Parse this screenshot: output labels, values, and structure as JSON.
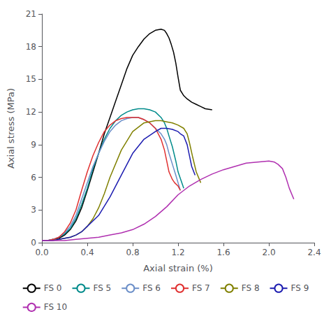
{
  "chart_data": {
    "type": "line",
    "xlabel": "Axial strain (%)",
    "ylabel": "Axial stress (MPa)",
    "xlim": [
      0.0,
      2.4
    ],
    "ylim": [
      0,
      21
    ],
    "xticks": [
      {
        "value": 0.0,
        "label": "0.0"
      },
      0.4,
      0.8,
      1.2,
      1.6,
      {
        "value": 2.0,
        "label": "2.0"
      },
      2.4
    ],
    "yticks": [
      0,
      3,
      6,
      9,
      12,
      15,
      18,
      21
    ],
    "grid": false,
    "legend": "bottom",
    "series": [
      {
        "name": "FS 0",
        "color": "#000000",
        "x": [
          0.0,
          0.05,
          0.1,
          0.15,
          0.2,
          0.25,
          0.3,
          0.35,
          0.4,
          0.45,
          0.5,
          0.55,
          0.6,
          0.65,
          0.7,
          0.75,
          0.8,
          0.85,
          0.9,
          0.95,
          1.0,
          1.05,
          1.08,
          1.1,
          1.12,
          1.14,
          1.16,
          1.18,
          1.2,
          1.22,
          1.25,
          1.28,
          1.32,
          1.36,
          1.4,
          1.44,
          1.5
        ],
        "values": [
          0.2,
          0.2,
          0.3,
          0.4,
          0.7,
          1.2,
          2.0,
          3.2,
          4.8,
          6.5,
          8.2,
          10.0,
          11.5,
          13.0,
          14.5,
          16.0,
          17.2,
          18.0,
          18.7,
          19.2,
          19.5,
          19.6,
          19.5,
          19.2,
          18.8,
          18.2,
          17.5,
          16.5,
          15.2,
          14.0,
          13.5,
          13.2,
          12.9,
          12.7,
          12.5,
          12.3,
          12.2
        ]
      },
      {
        "name": "FS 5",
        "color": "#008B8B",
        "x": [
          0.0,
          0.05,
          0.1,
          0.15,
          0.2,
          0.25,
          0.3,
          0.35,
          0.4,
          0.45,
          0.5,
          0.55,
          0.6,
          0.65,
          0.7,
          0.75,
          0.8,
          0.85,
          0.9,
          0.95,
          1.0,
          1.05,
          1.08,
          1.1,
          1.12,
          1.15,
          1.18,
          1.2,
          1.25
        ],
        "values": [
          0.2,
          0.2,
          0.3,
          0.5,
          0.8,
          1.3,
          2.2,
          3.5,
          5.0,
          6.8,
          8.2,
          9.5,
          10.5,
          11.2,
          11.7,
          12.0,
          12.2,
          12.3,
          12.3,
          12.2,
          12.0,
          11.5,
          11.0,
          10.5,
          9.8,
          8.8,
          7.5,
          6.5,
          5.0
        ]
      },
      {
        "name": "FS 6",
        "color": "#6B8EC8",
        "x": [
          0.0,
          0.05,
          0.1,
          0.15,
          0.2,
          0.25,
          0.3,
          0.35,
          0.4,
          0.45,
          0.5,
          0.55,
          0.6,
          0.65,
          0.7,
          0.75,
          0.8,
          0.85,
          0.9,
          0.95,
          1.0,
          1.05,
          1.08,
          1.1,
          1.12,
          1.15,
          1.18,
          1.2,
          1.22
        ],
        "values": [
          0.2,
          0.2,
          0.3,
          0.5,
          0.9,
          1.5,
          2.5,
          4.0,
          5.5,
          7.0,
          8.2,
          9.3,
          10.2,
          10.8,
          11.2,
          11.4,
          11.5,
          11.5,
          11.3,
          11.0,
          10.5,
          10.0,
          9.5,
          9.0,
          8.2,
          7.2,
          6.2,
          5.5,
          4.8
        ]
      },
      {
        "name": "FS 7",
        "color": "#E03030",
        "x": [
          0.0,
          0.05,
          0.1,
          0.15,
          0.2,
          0.25,
          0.3,
          0.35,
          0.4,
          0.45,
          0.5,
          0.55,
          0.6,
          0.65,
          0.7,
          0.75,
          0.8,
          0.85,
          0.9,
          0.95,
          1.0,
          1.05,
          1.08,
          1.1,
          1.12,
          1.15,
          1.17,
          1.2,
          1.22
        ],
        "values": [
          0.2,
          0.2,
          0.3,
          0.5,
          1.0,
          1.8,
          3.0,
          4.8,
          6.5,
          8.0,
          9.2,
          10.2,
          10.8,
          11.2,
          11.4,
          11.5,
          11.5,
          11.5,
          11.3,
          11.0,
          10.5,
          9.5,
          8.5,
          7.5,
          6.5,
          5.8,
          5.5,
          5.2,
          4.8
        ]
      },
      {
        "name": "FS 8",
        "color": "#808000",
        "x": [
          0.0,
          0.05,
          0.1,
          0.15,
          0.2,
          0.25,
          0.3,
          0.35,
          0.4,
          0.45,
          0.5,
          0.55,
          0.6,
          0.7,
          0.8,
          0.9,
          1.0,
          1.05,
          1.1,
          1.15,
          1.2,
          1.25,
          1.28,
          1.3,
          1.33,
          1.36,
          1.4
        ],
        "values": [
          0.2,
          0.2,
          0.2,
          0.3,
          0.4,
          0.5,
          0.7,
          1.0,
          1.5,
          2.2,
          3.2,
          4.5,
          6.0,
          8.5,
          10.2,
          11.0,
          11.2,
          11.2,
          11.1,
          11.0,
          10.8,
          10.5,
          10.0,
          9.2,
          7.8,
          6.5,
          5.5
        ]
      },
      {
        "name": "FS 9",
        "color": "#1C1CB0",
        "x": [
          0.0,
          0.05,
          0.1,
          0.15,
          0.2,
          0.25,
          0.3,
          0.35,
          0.4,
          0.5,
          0.6,
          0.7,
          0.8,
          0.9,
          1.0,
          1.05,
          1.1,
          1.15,
          1.2,
          1.22,
          1.25,
          1.28,
          1.3,
          1.32,
          1.35
        ],
        "values": [
          0.2,
          0.2,
          0.2,
          0.3,
          0.4,
          0.5,
          0.7,
          1.0,
          1.5,
          2.5,
          4.2,
          6.2,
          8.2,
          9.5,
          10.2,
          10.5,
          10.5,
          10.4,
          10.2,
          10.0,
          9.8,
          9.0,
          8.0,
          7.0,
          6.2
        ]
      },
      {
        "name": "FS 10",
        "color": "#B030B0",
        "x": [
          0.0,
          0.1,
          0.2,
          0.3,
          0.4,
          0.5,
          0.6,
          0.7,
          0.8,
          0.9,
          1.0,
          1.1,
          1.2,
          1.3,
          1.4,
          1.5,
          1.6,
          1.7,
          1.8,
          1.9,
          2.0,
          2.05,
          2.08,
          2.12,
          2.15,
          2.18,
          2.22
        ],
        "values": [
          0.2,
          0.2,
          0.2,
          0.3,
          0.4,
          0.5,
          0.7,
          0.9,
          1.2,
          1.7,
          2.4,
          3.3,
          4.4,
          5.2,
          5.8,
          6.3,
          6.7,
          7.0,
          7.3,
          7.4,
          7.5,
          7.4,
          7.2,
          6.8,
          6.0,
          5.0,
          4.0
        ]
      }
    ]
  }
}
